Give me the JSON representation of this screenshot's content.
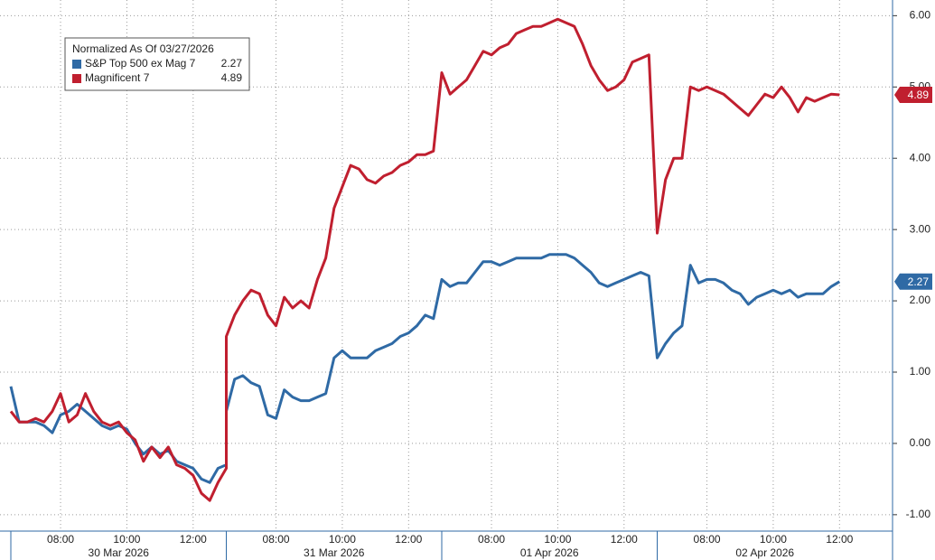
{
  "chart_data": {
    "type": "line",
    "legend_title": "Normalized As Of 03/27/2026",
    "legend": "upper left",
    "grid": true,
    "x": [
      "2026-03-30 06:30",
      "2026-03-30 06:45",
      "2026-03-30 07:00",
      "2026-03-30 07:15",
      "2026-03-30 07:30",
      "2026-03-30 07:45",
      "2026-03-30 08:00",
      "2026-03-30 08:15",
      "2026-03-30 08:30",
      "2026-03-30 08:45",
      "2026-03-30 09:00",
      "2026-03-30 09:15",
      "2026-03-30 09:30",
      "2026-03-30 09:45",
      "2026-03-30 10:00",
      "2026-03-30 10:15",
      "2026-03-30 10:30",
      "2026-03-30 10:45",
      "2026-03-30 11:00",
      "2026-03-30 11:15",
      "2026-03-30 11:30",
      "2026-03-30 11:45",
      "2026-03-30 12:00",
      "2026-03-30 12:15",
      "2026-03-30 12:30",
      "2026-03-30 12:45",
      "2026-03-30 13:00",
      "2026-03-31 06:30",
      "2026-03-31 06:45",
      "2026-03-31 07:00",
      "2026-03-31 07:15",
      "2026-03-31 07:30",
      "2026-03-31 07:45",
      "2026-03-31 08:00",
      "2026-03-31 08:15",
      "2026-03-31 08:30",
      "2026-03-31 08:45",
      "2026-03-31 09:00",
      "2026-03-31 09:15",
      "2026-03-31 09:30",
      "2026-03-31 09:45",
      "2026-03-31 10:00",
      "2026-03-31 10:15",
      "2026-03-31 10:30",
      "2026-03-31 10:45",
      "2026-03-31 11:00",
      "2026-03-31 11:15",
      "2026-03-31 11:30",
      "2026-03-31 11:45",
      "2026-03-31 12:00",
      "2026-03-31 12:15",
      "2026-03-31 12:30",
      "2026-03-31 12:45",
      "2026-03-31 13:00",
      "2026-04-01 06:30",
      "2026-04-01 06:45",
      "2026-04-01 07:00",
      "2026-04-01 07:15",
      "2026-04-01 07:30",
      "2026-04-01 07:45",
      "2026-04-01 08:00",
      "2026-04-01 08:15",
      "2026-04-01 08:30",
      "2026-04-01 08:45",
      "2026-04-01 09:00",
      "2026-04-01 09:15",
      "2026-04-01 09:30",
      "2026-04-01 09:45",
      "2026-04-01 10:00",
      "2026-04-01 10:15",
      "2026-04-01 10:30",
      "2026-04-01 10:45",
      "2026-04-01 11:00",
      "2026-04-01 11:15",
      "2026-04-01 11:30",
      "2026-04-01 11:45",
      "2026-04-01 12:00",
      "2026-04-01 12:15",
      "2026-04-01 12:30",
      "2026-04-01 12:45",
      "2026-04-01 13:00",
      "2026-04-02 06:30",
      "2026-04-02 06:45",
      "2026-04-02 07:00",
      "2026-04-02 07:15",
      "2026-04-02 07:30",
      "2026-04-02 07:45",
      "2026-04-02 08:00",
      "2026-04-02 08:15",
      "2026-04-02 08:30",
      "2026-04-02 08:45",
      "2026-04-02 09:00",
      "2026-04-02 09:15",
      "2026-04-02 09:30",
      "2026-04-02 09:45",
      "2026-04-02 10:00",
      "2026-04-02 10:15",
      "2026-04-02 10:30",
      "2026-04-02 10:45",
      "2026-04-02 11:00",
      "2026-04-02 11:15",
      "2026-04-02 11:30",
      "2026-04-02 11:45",
      "2026-04-02 12:00"
    ],
    "series": [
      {
        "name": "S&P Top 500 ex Mag 7",
        "color": "#2f6aa5",
        "values": [
          0.8,
          0.3,
          0.3,
          0.3,
          0.25,
          0.15,
          0.4,
          0.45,
          0.55,
          0.45,
          0.35,
          0.25,
          0.2,
          0.25,
          0.2,
          0.0,
          -0.15,
          -0.05,
          -0.15,
          -0.1,
          -0.25,
          -0.3,
          -0.35,
          -0.5,
          -0.55,
          -0.35,
          -0.3,
          0.45,
          0.9,
          0.95,
          0.85,
          0.8,
          0.4,
          0.35,
          0.75,
          0.65,
          0.6,
          0.6,
          0.65,
          0.7,
          1.2,
          1.3,
          1.2,
          1.2,
          1.2,
          1.3,
          1.35,
          1.4,
          1.5,
          1.55,
          1.65,
          1.8,
          1.75,
          2.3,
          2.3,
          2.2,
          2.25,
          2.25,
          2.4,
          2.55,
          2.55,
          2.5,
          2.55,
          2.6,
          2.6,
          2.6,
          2.6,
          2.65,
          2.65,
          2.65,
          2.6,
          2.5,
          2.4,
          2.25,
          2.2,
          2.25,
          2.3,
          2.35,
          2.4,
          2.35,
          1.2,
          1.2,
          1.4,
          1.55,
          1.65,
          2.5,
          2.25,
          2.3,
          2.3,
          2.25,
          2.15,
          2.1,
          1.95,
          2.05,
          2.1,
          2.15,
          2.1,
          2.15,
          2.05,
          2.1,
          2.1,
          2.1,
          2.2,
          2.27
        ]
      },
      {
        "name": "Magnificent 7",
        "color": "#c01f2f",
        "values": [
          0.45,
          0.3,
          0.3,
          0.35,
          0.3,
          0.45,
          0.7,
          0.3,
          0.4,
          0.7,
          0.45,
          0.3,
          0.25,
          0.3,
          0.15,
          0.05,
          -0.25,
          -0.05,
          -0.2,
          -0.05,
          -0.3,
          -0.35,
          -0.45,
          -0.7,
          -0.8,
          -0.55,
          -0.35,
          1.5,
          1.8,
          2.0,
          2.15,
          2.1,
          1.8,
          1.65,
          2.05,
          1.9,
          2.0,
          1.9,
          2.3,
          2.6,
          3.3,
          3.6,
          3.9,
          3.85,
          3.7,
          3.65,
          3.75,
          3.8,
          3.9,
          3.95,
          4.05,
          4.05,
          4.1,
          5.2,
          5.2,
          4.9,
          5.0,
          5.1,
          5.3,
          5.5,
          5.45,
          5.55,
          5.6,
          5.75,
          5.8,
          5.85,
          5.85,
          5.9,
          5.95,
          5.9,
          5.85,
          5.6,
          5.3,
          5.1,
          4.95,
          5.0,
          5.1,
          5.35,
          5.4,
          5.45,
          2.95,
          2.95,
          3.7,
          4.0,
          4.0,
          5.0,
          4.95,
          5.0,
          4.95,
          4.9,
          4.8,
          4.7,
          4.6,
          4.75,
          4.9,
          4.85,
          5.0,
          4.85,
          4.65,
          4.85,
          4.8,
          4.85,
          4.9,
          4.89
        ]
      }
    ],
    "ylim": [
      -1.23,
      6.22
    ],
    "yticks": [
      {
        "value": -1,
        "label": "-1.00"
      },
      {
        "value": 0,
        "label": "0.00"
      },
      {
        "value": 1,
        "label": "1.00"
      },
      {
        "value": 2,
        "label": "2.00"
      },
      {
        "value": 3,
        "label": "3.00"
      },
      {
        "value": 4,
        "label": "4.00"
      },
      {
        "value": 5,
        "label": "5.00"
      },
      {
        "value": 6,
        "label": "6.00"
      }
    ],
    "xticks": [
      {
        "value": "2026-03-30 08:00",
        "label": "08:00"
      },
      {
        "value": "2026-03-30 10:00",
        "label": "10:00"
      },
      {
        "value": "2026-03-30 12:00",
        "label": "12:00"
      },
      {
        "value": "2026-03-31 08:00",
        "label": "08:00"
      },
      {
        "value": "2026-03-31 10:00",
        "label": "10:00"
      },
      {
        "value": "2026-03-31 12:00",
        "label": "12:00"
      },
      {
        "value": "2026-04-01 08:00",
        "label": "08:00"
      },
      {
        "value": "2026-04-01 10:00",
        "label": "10:00"
      },
      {
        "value": "2026-04-01 12:00",
        "label": "12:00"
      },
      {
        "value": "2026-04-02 08:00",
        "label": "08:00"
      },
      {
        "value": "2026-04-02 10:00",
        "label": "10:00"
      },
      {
        "value": "2026-04-02 12:00",
        "label": "12:00"
      }
    ],
    "xgroups": [
      {
        "value": "2026-03-30",
        "label": "30 Mar 2026"
      },
      {
        "value": "2026-03-31",
        "label": "31 Mar 2026"
      },
      {
        "value": "2026-04-01",
        "label": "01 Apr 2026"
      },
      {
        "value": "2026-04-02",
        "label": "02 Apr 2026"
      }
    ]
  }
}
